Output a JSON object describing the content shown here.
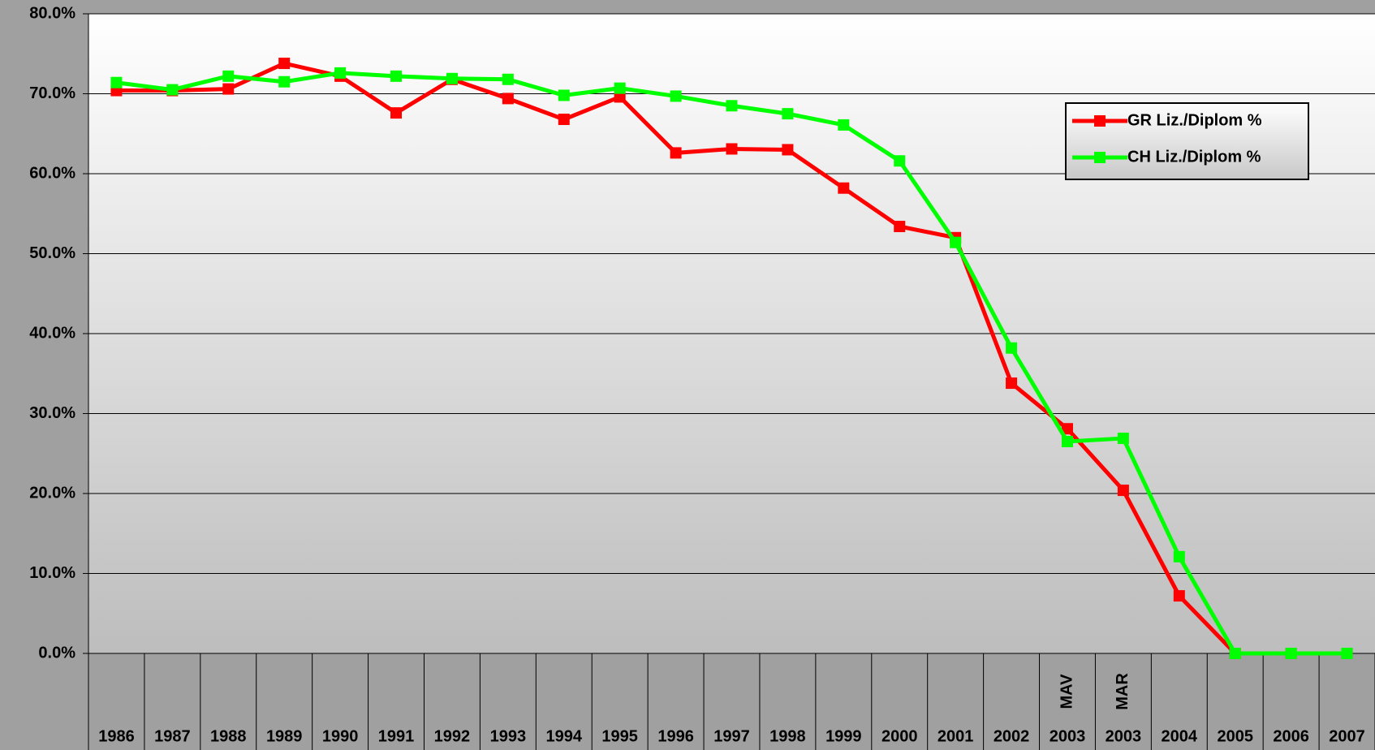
{
  "chart_data": {
    "type": "line",
    "categories": [
      "1986",
      "1987",
      "1988",
      "1989",
      "1990",
      "1991",
      "1992",
      "1993",
      "1994",
      "1995",
      "1996",
      "1997",
      "1998",
      "1999",
      "2000",
      "2001",
      "2002",
      "2003",
      "2003",
      "2004",
      "2005",
      "2006",
      "2007"
    ],
    "category_notes": [
      null,
      null,
      null,
      null,
      null,
      null,
      null,
      null,
      null,
      null,
      null,
      null,
      null,
      null,
      null,
      null,
      null,
      "MAV",
      "MAR",
      null,
      null,
      null,
      null
    ],
    "series": [
      {
        "name": "GR Liz./Diplom %",
        "color": "#ff0000",
        "values": [
          70.4,
          70.4,
          70.6,
          73.8,
          72.2,
          67.6,
          71.8,
          69.4,
          66.8,
          69.6,
          62.6,
          63.1,
          63.0,
          58.2,
          53.4,
          52.0,
          33.8,
          28.1,
          20.4,
          7.2,
          0,
          0,
          0
        ]
      },
      {
        "name": "CH Liz./Diplom %",
        "color": "#00ff00",
        "values": [
          71.4,
          70.5,
          72.2,
          71.5,
          72.6,
          72.2,
          71.9,
          71.8,
          69.8,
          70.7,
          69.7,
          68.5,
          67.5,
          66.1,
          61.6,
          51.4,
          38.2,
          26.5,
          26.9,
          12.1,
          0,
          0,
          0
        ]
      }
    ],
    "ylim": [
      0,
      80
    ],
    "yticks": [
      {
        "value": 0,
        "label": "0.0%"
      },
      {
        "value": 10,
        "label": "10.0%"
      },
      {
        "value": 20,
        "label": "20.0%"
      },
      {
        "value": 30,
        "label": "30.0%"
      },
      {
        "value": 40,
        "label": "40.0%"
      },
      {
        "value": 50,
        "label": "50.0%"
      },
      {
        "value": 60,
        "label": "60.0%"
      },
      {
        "value": 70,
        "label": "70.0%"
      },
      {
        "value": 80,
        "label": "80.0%"
      }
    ],
    "grid": true,
    "legend": "upper right"
  }
}
